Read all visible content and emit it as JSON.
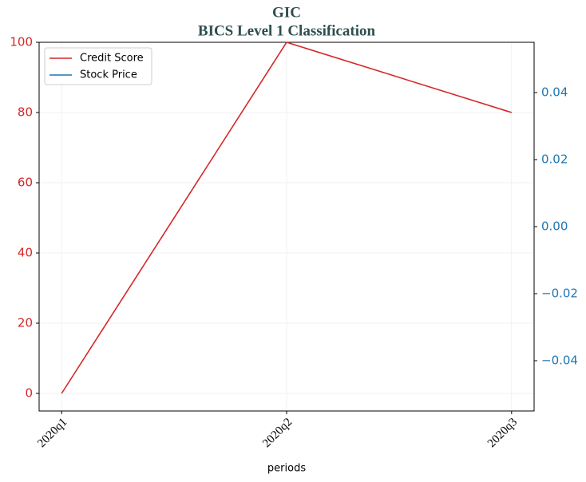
{
  "chart_data": {
    "type": "line",
    "title": "GIC",
    "subtitle": "BICS Level 1 Classification",
    "x_label": "periods",
    "categories": [
      "2020q1",
      "2020q2",
      "2020q3"
    ],
    "series": [
      {
        "name": "Credit Score",
        "color": "#d62728",
        "values": [
          0,
          100,
          80
        ]
      },
      {
        "name": "Stock Price",
        "color": "#1f77b4",
        "values": [
          null,
          null,
          null
        ],
        "axis": "y2"
      }
    ],
    "ylim": [
      -5,
      100
    ],
    "yticks": [
      0,
      20,
      40,
      60,
      80,
      100
    ],
    "y2lim": [
      -0.055,
      0.055
    ],
    "y2ticks": [
      {
        "value": -0.04,
        "label": "−0.04"
      },
      {
        "value": -0.02,
        "label": "−0.02"
      },
      {
        "value": 0,
        "label": "0.00"
      },
      {
        "value": 0.02,
        "label": "0.02"
      },
      {
        "value": 0.04,
        "label": "0.04"
      }
    ],
    "grid": true,
    "legend": "upper left",
    "ycolor": "#d62728",
    "y2color": "#1f77b4"
  }
}
